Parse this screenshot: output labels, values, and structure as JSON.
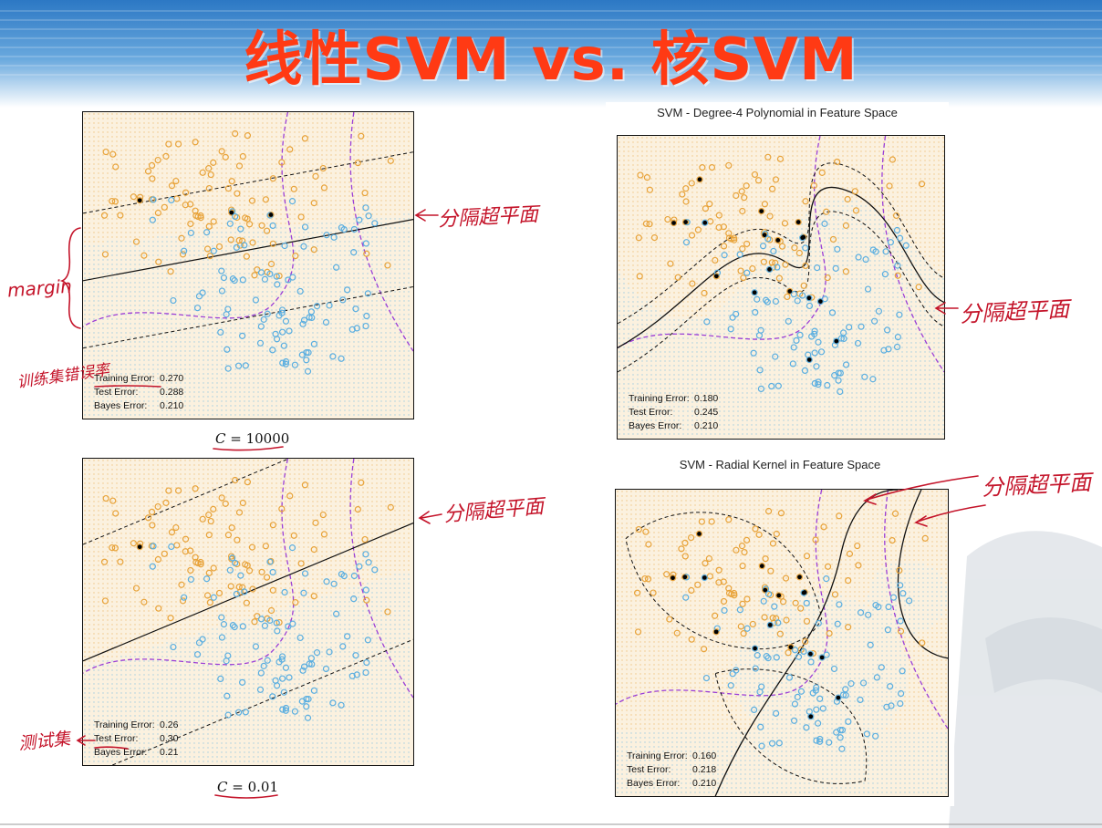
{
  "slide": {
    "title": "线性SVM vs. 核SVM"
  },
  "panels": [
    {
      "id": "p1",
      "title": "",
      "errors": [
        {
          "label": "Training Error:",
          "value": "0.270"
        },
        {
          "label": "Test Error:",
          "value": "0.288"
        },
        {
          "label": "Bayes Error:",
          "value": "0.210"
        }
      ],
      "caption_var": "C",
      "caption_eq": " = ",
      "caption_val": "10000"
    },
    {
      "id": "p2",
      "title": "",
      "errors": [
        {
          "label": "Training Error:",
          "value": "0.26"
        },
        {
          "label": "Test Error:",
          "value": "0.30"
        },
        {
          "label": "Bayes Error:",
          "value": "0.21"
        }
      ],
      "caption_var": "C",
      "caption_eq": " = ",
      "caption_val": "0.01"
    },
    {
      "id": "p3",
      "title": "SVM - Degree-4 Polynomial in Feature Space",
      "errors": [
        {
          "label": "Training Error:",
          "value": "0.180"
        },
        {
          "label": "Test Error:",
          "value": "0.245"
        },
        {
          "label": "Bayes Error:",
          "value": "0.210"
        }
      ]
    },
    {
      "id": "p4",
      "title": "SVM - Radial Kernel in Feature Space",
      "errors": [
        {
          "label": "Training Error:",
          "value": "0.160"
        },
        {
          "label": "Test Error:",
          "value": "0.218"
        },
        {
          "label": "Bayes Error:",
          "value": "0.210"
        }
      ]
    }
  ],
  "annotations": {
    "hyperplane": "分隔超平面",
    "margin": "margin",
    "training_error": "训练集错误率",
    "test_set": "测试集"
  },
  "colors": {
    "class_orange": "#e8a33a",
    "class_blue": "#5aaee0",
    "bayes_boundary": "#9b3fd6",
    "support_vector": "#000000",
    "handwriting": "#c4142a",
    "title": "#ff3a14"
  }
}
